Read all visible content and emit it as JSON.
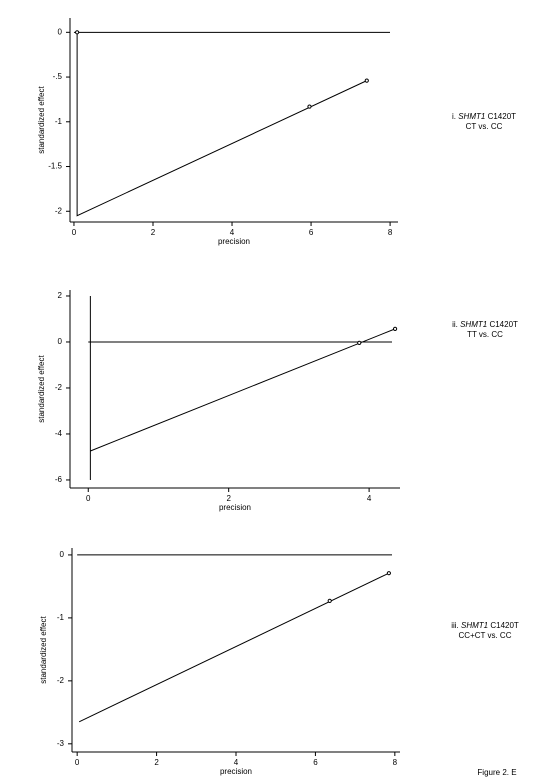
{
  "figure_label": "Figure 2. E",
  "chart_data": [
    {
      "type": "scatter",
      "x_label": "precision",
      "y_label": "standardized effect",
      "annotation": {
        "prefix": "i.",
        "gene": "SHMT1",
        "variant": "C1420T",
        "comparison": "CT vs. CC"
      },
      "xlim": [
        -0.1,
        8.2
      ],
      "ylim": [
        -2.12,
        0.16
      ],
      "xticks": [
        0,
        2,
        4,
        6,
        8
      ],
      "yticks": [
        0,
        {
          "value": -0.5,
          "label": "-.5"
        },
        -1,
        -1.5,
        -2
      ],
      "reference_y": 0,
      "series": [
        {
          "x": [
            0.08,
            5.96,
            7.41
          ],
          "values": [
            0,
            -0.83,
            -0.54
          ],
          "color": "#000000"
        }
      ],
      "fit_line": {
        "x": [
          0.08,
          0.08,
          7.41
        ],
        "values": [
          0,
          -2.05,
          -0.54
        ]
      }
    },
    {
      "type": "scatter",
      "x_label": "precision",
      "y_label": "standardized effect",
      "annotation": {
        "prefix": "ii.",
        "gene": "SHMT1",
        "variant": "C1420T",
        "comparison": "TT vs. CC"
      },
      "xlim": [
        -0.26,
        4.44
      ],
      "ylim": [
        -6.35,
        2.26
      ],
      "xticks": [
        0,
        2,
        4
      ],
      "yticks": [
        2,
        0,
        -2,
        -4,
        -6
      ],
      "reference_y": 0,
      "vertical_line": {
        "x": 0.03,
        "values": [
          -6,
          2
        ]
      },
      "series": [
        {
          "x": [
            3.86,
            4.37
          ],
          "values": [
            -0.04,
            0.57
          ],
          "color": "#000000"
        }
      ],
      "fit_line": {
        "x": [
          0.03,
          4.37
        ],
        "values": [
          -4.74,
          0.57
        ]
      }
    },
    {
      "type": "scatter",
      "x_label": "precision",
      "y_label": "standardized effect",
      "annotation": {
        "prefix": "iii.",
        "gene": "SHMT1",
        "variant": "C1420T",
        "comparison": "CC+CT vs. CC"
      },
      "xlim": [
        -0.13,
        8.13
      ],
      "ylim": [
        -3.13,
        0.11
      ],
      "xticks": [
        0,
        2,
        4,
        6,
        8
      ],
      "yticks": [
        0,
        -1,
        -2,
        -3
      ],
      "reference_y": 0,
      "series": [
        {
          "x": [
            6.36,
            7.85
          ],
          "values": [
            -0.73,
            -0.29
          ],
          "color": "#000000"
        }
      ],
      "fit_line": {
        "x": [
          0.05,
          7.85
        ],
        "values": [
          -2.65,
          -0.29
        ]
      }
    }
  ]
}
